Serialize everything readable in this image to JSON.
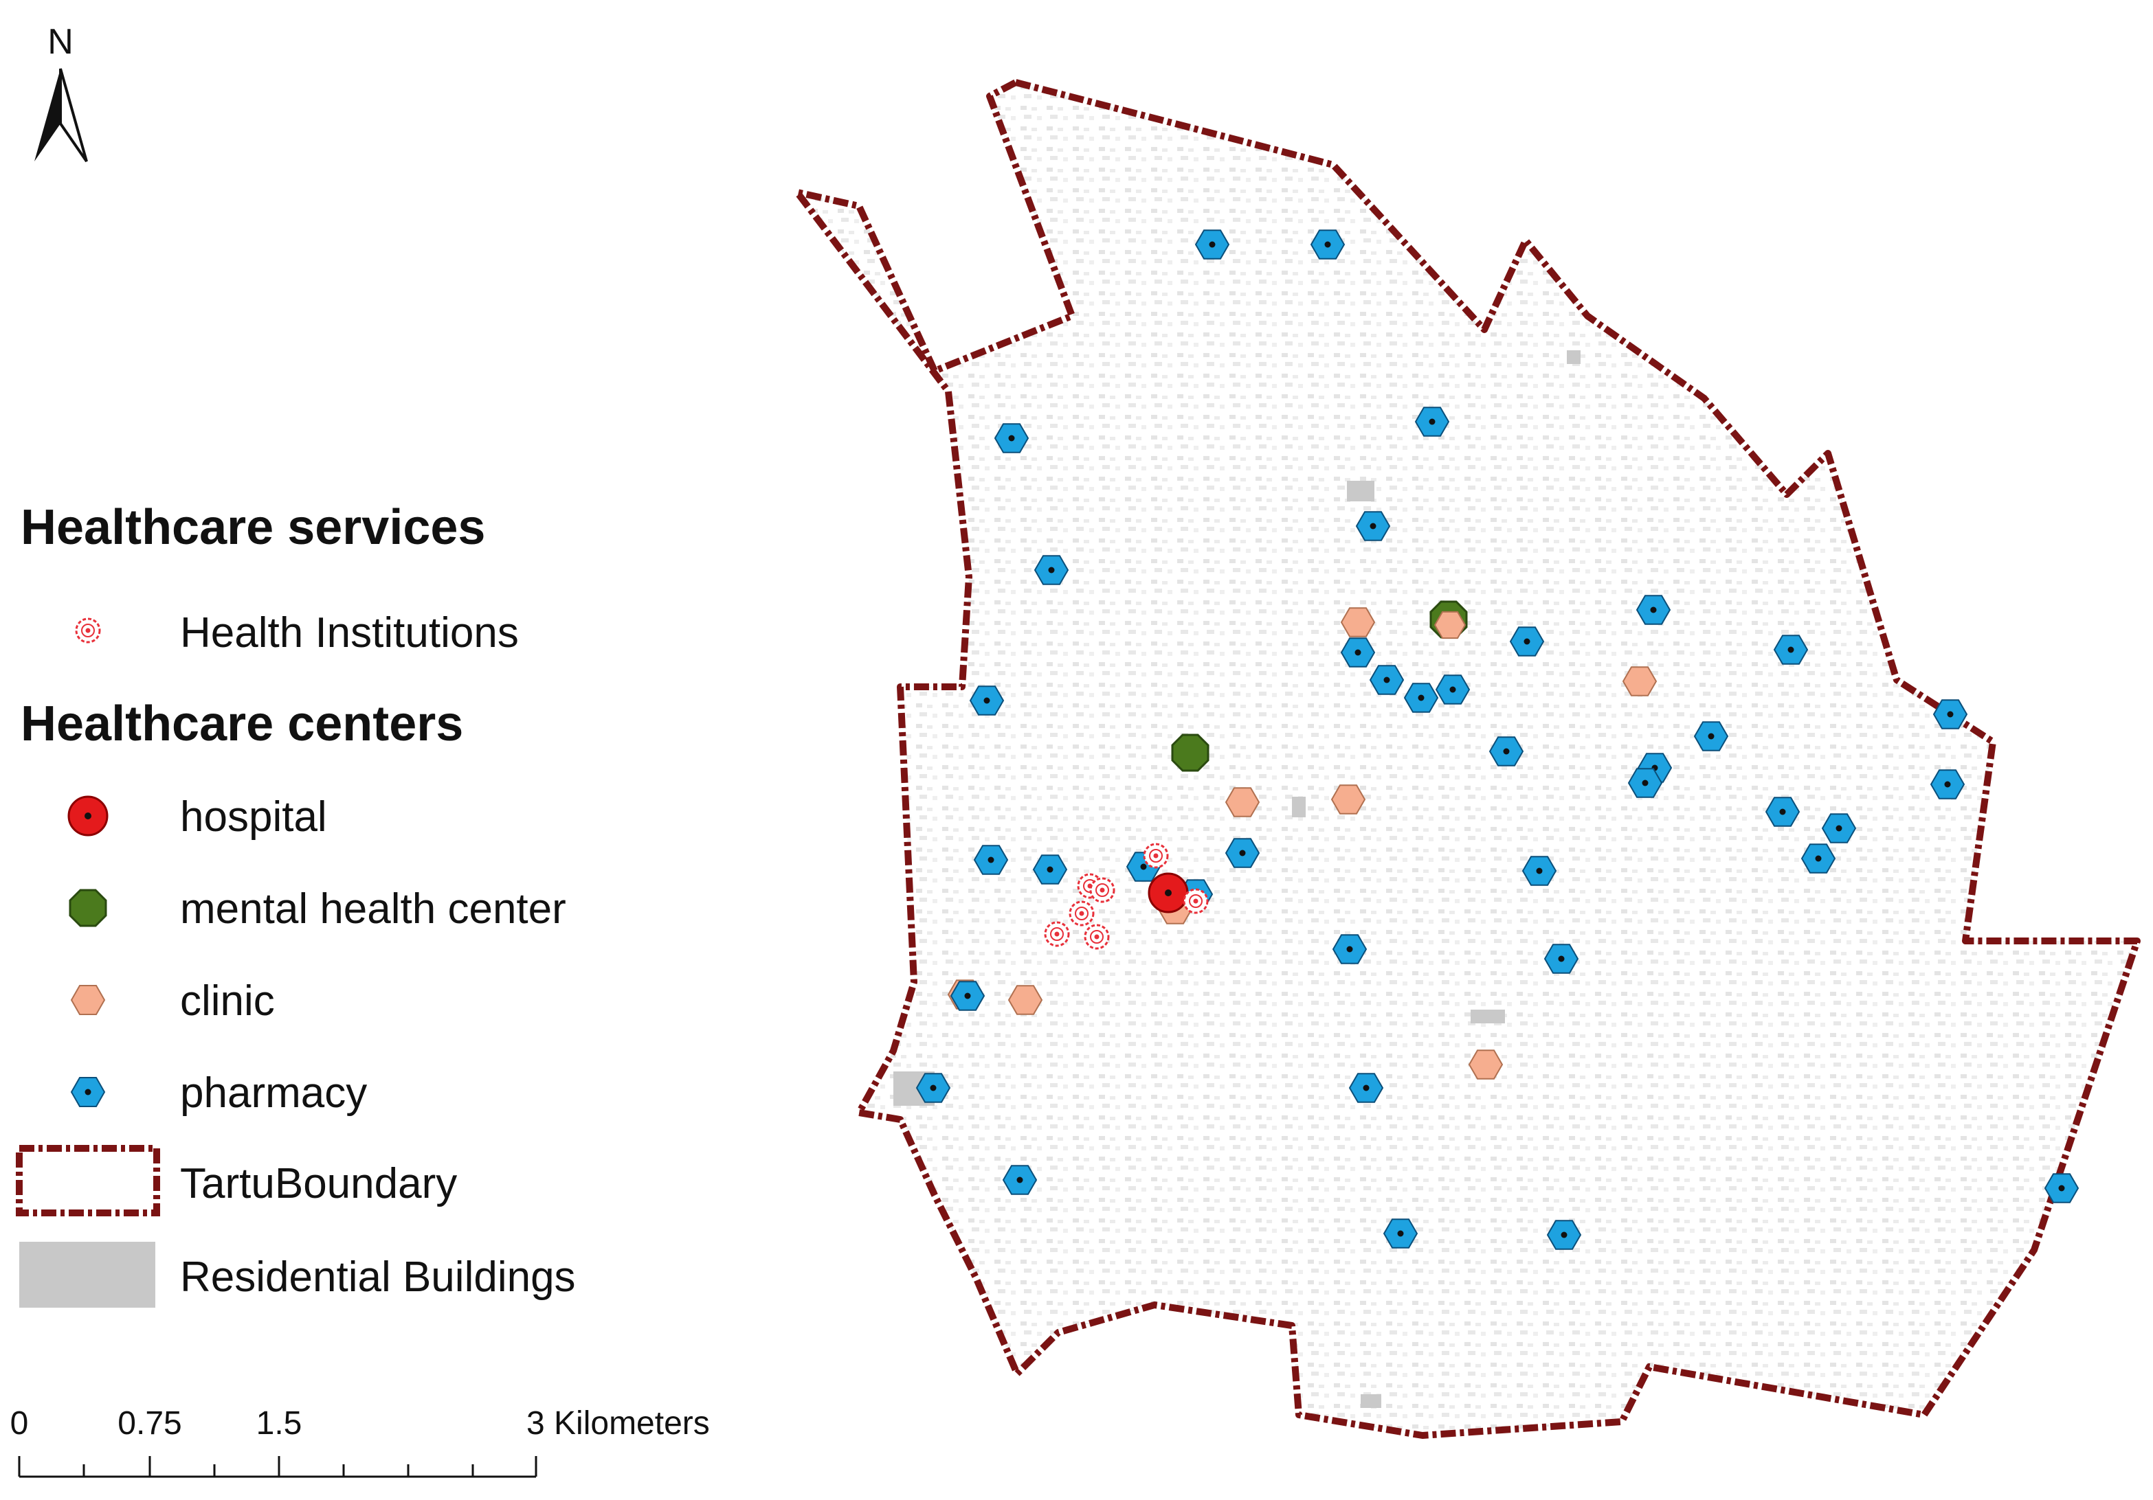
{
  "north_arrow": {
    "label": "N"
  },
  "legend": {
    "services_heading": "Healthcare services",
    "services": [
      {
        "key": "health_institution",
        "label": "Health Institutions",
        "icon": "health-institution-icon",
        "color": "#e8303a"
      }
    ],
    "centers_heading": "Healthcare centers",
    "centers": [
      {
        "key": "hospital",
        "label": "hospital",
        "icon": "hospital-icon",
        "color": "#e41a1c"
      },
      {
        "key": "mental",
        "label": "mental health center",
        "icon": "mental-health-center-icon",
        "color": "#4b7a1d"
      },
      {
        "key": "clinic",
        "label": "clinic",
        "icon": "clinic-icon",
        "color": "#f6ae8f"
      },
      {
        "key": "pharmacy",
        "label": "pharmacy",
        "icon": "pharmacy-icon",
        "color": "#1ea2e0"
      }
    ],
    "boundary": {
      "label": "TartuBoundary",
      "icon": "boundary-icon",
      "color": "#7a1313"
    },
    "buildings": {
      "label": "Residential Buildings",
      "icon": "residential-buildings-icon",
      "color": "#c8c8c8"
    }
  },
  "scale_bar": {
    "labels": [
      "0",
      "0.75",
      "1.5",
      "3 Kilometers"
    ]
  }
}
